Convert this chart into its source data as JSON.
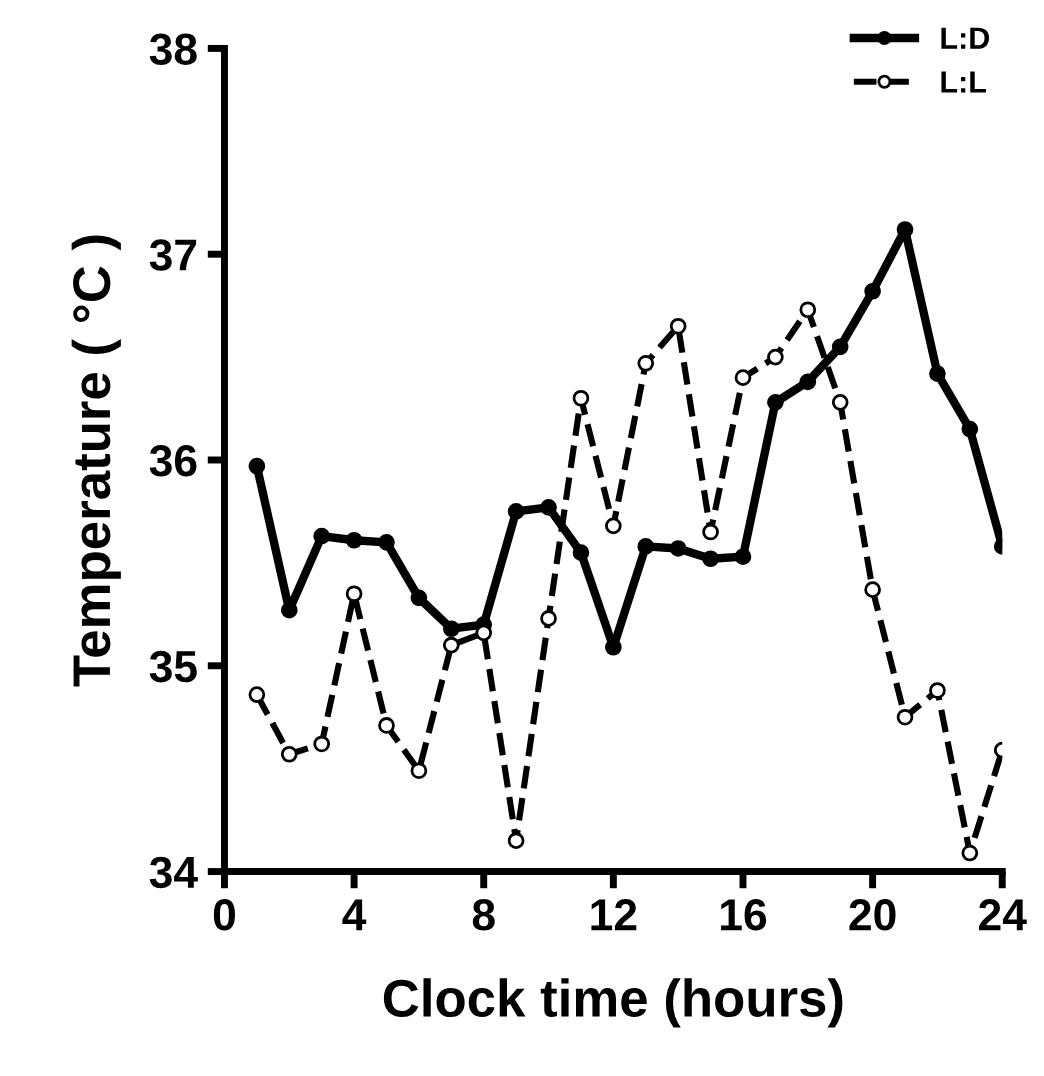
{
  "chart_data": {
    "type": "line",
    "xlabel": "Clock time (hours)",
    "ylabel": "Temperature ( °C )",
    "x": [
      1,
      2,
      3,
      4,
      5,
      6,
      7,
      8,
      9,
      10,
      11,
      12,
      13,
      14,
      15,
      16,
      17,
      18,
      19,
      20,
      21,
      22,
      23,
      24
    ],
    "xlim": [
      0,
      24
    ],
    "xticks": [
      0,
      4,
      8,
      12,
      16,
      20,
      24
    ],
    "ylim": [
      34,
      38
    ],
    "yticks": [
      34,
      35,
      36,
      37,
      38
    ],
    "grid": false,
    "legend": "top right",
    "marker": "circle",
    "series": [
      {
        "name": "L:D",
        "color": "#000000",
        "line_style": "solid",
        "values": [
          35.97,
          35.27,
          35.63,
          35.61,
          35.6,
          35.33,
          35.18,
          35.2,
          35.75,
          35.77,
          35.55,
          35.09,
          35.58,
          35.57,
          35.52,
          35.53,
          36.28,
          36.38,
          36.55,
          36.82,
          37.12,
          36.42,
          36.15,
          35.58
        ]
      },
      {
        "name": "L:L",
        "color": "#000000",
        "line_style": "dashed",
        "values": [
          34.86,
          34.57,
          34.62,
          35.35,
          34.71,
          34.49,
          35.1,
          35.16,
          34.15,
          35.23,
          36.3,
          35.68,
          36.47,
          36.65,
          35.65,
          36.4,
          36.5,
          36.73,
          36.28,
          35.37,
          34.75,
          34.88,
          34.09,
          34.59
        ]
      }
    ]
  }
}
